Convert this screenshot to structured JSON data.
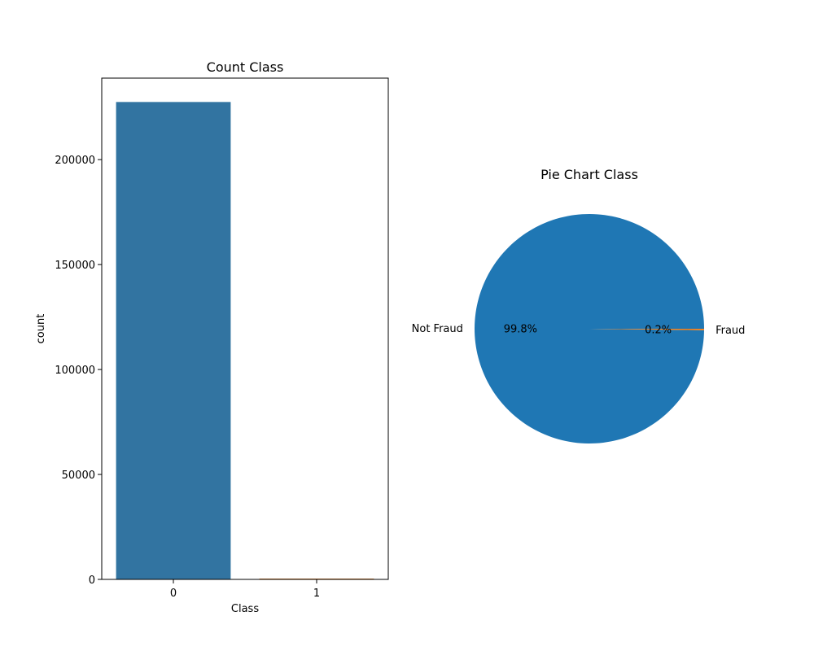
{
  "chart_data": [
    {
      "type": "bar",
      "title": "Count Class",
      "xlabel": "Class",
      "ylabel": "count",
      "categories": [
        "0",
        "1"
      ],
      "values": [
        227452,
        394
      ],
      "ylim": [
        0,
        238825
      ],
      "yticks": [
        0,
        50000,
        100000,
        150000,
        200000
      ],
      "colors": [
        "#3274a1",
        "#e1812c"
      ],
      "grid": false
    },
    {
      "type": "pie",
      "title": "Pie Chart Class",
      "labels": [
        "Not Fraud",
        "Fraud"
      ],
      "values": [
        99.8,
        0.2
      ],
      "autopct_labels": [
        "99.8%",
        "0.2%"
      ],
      "colors": [
        "#1f77b4",
        "#ff7f0e"
      ]
    }
  ]
}
